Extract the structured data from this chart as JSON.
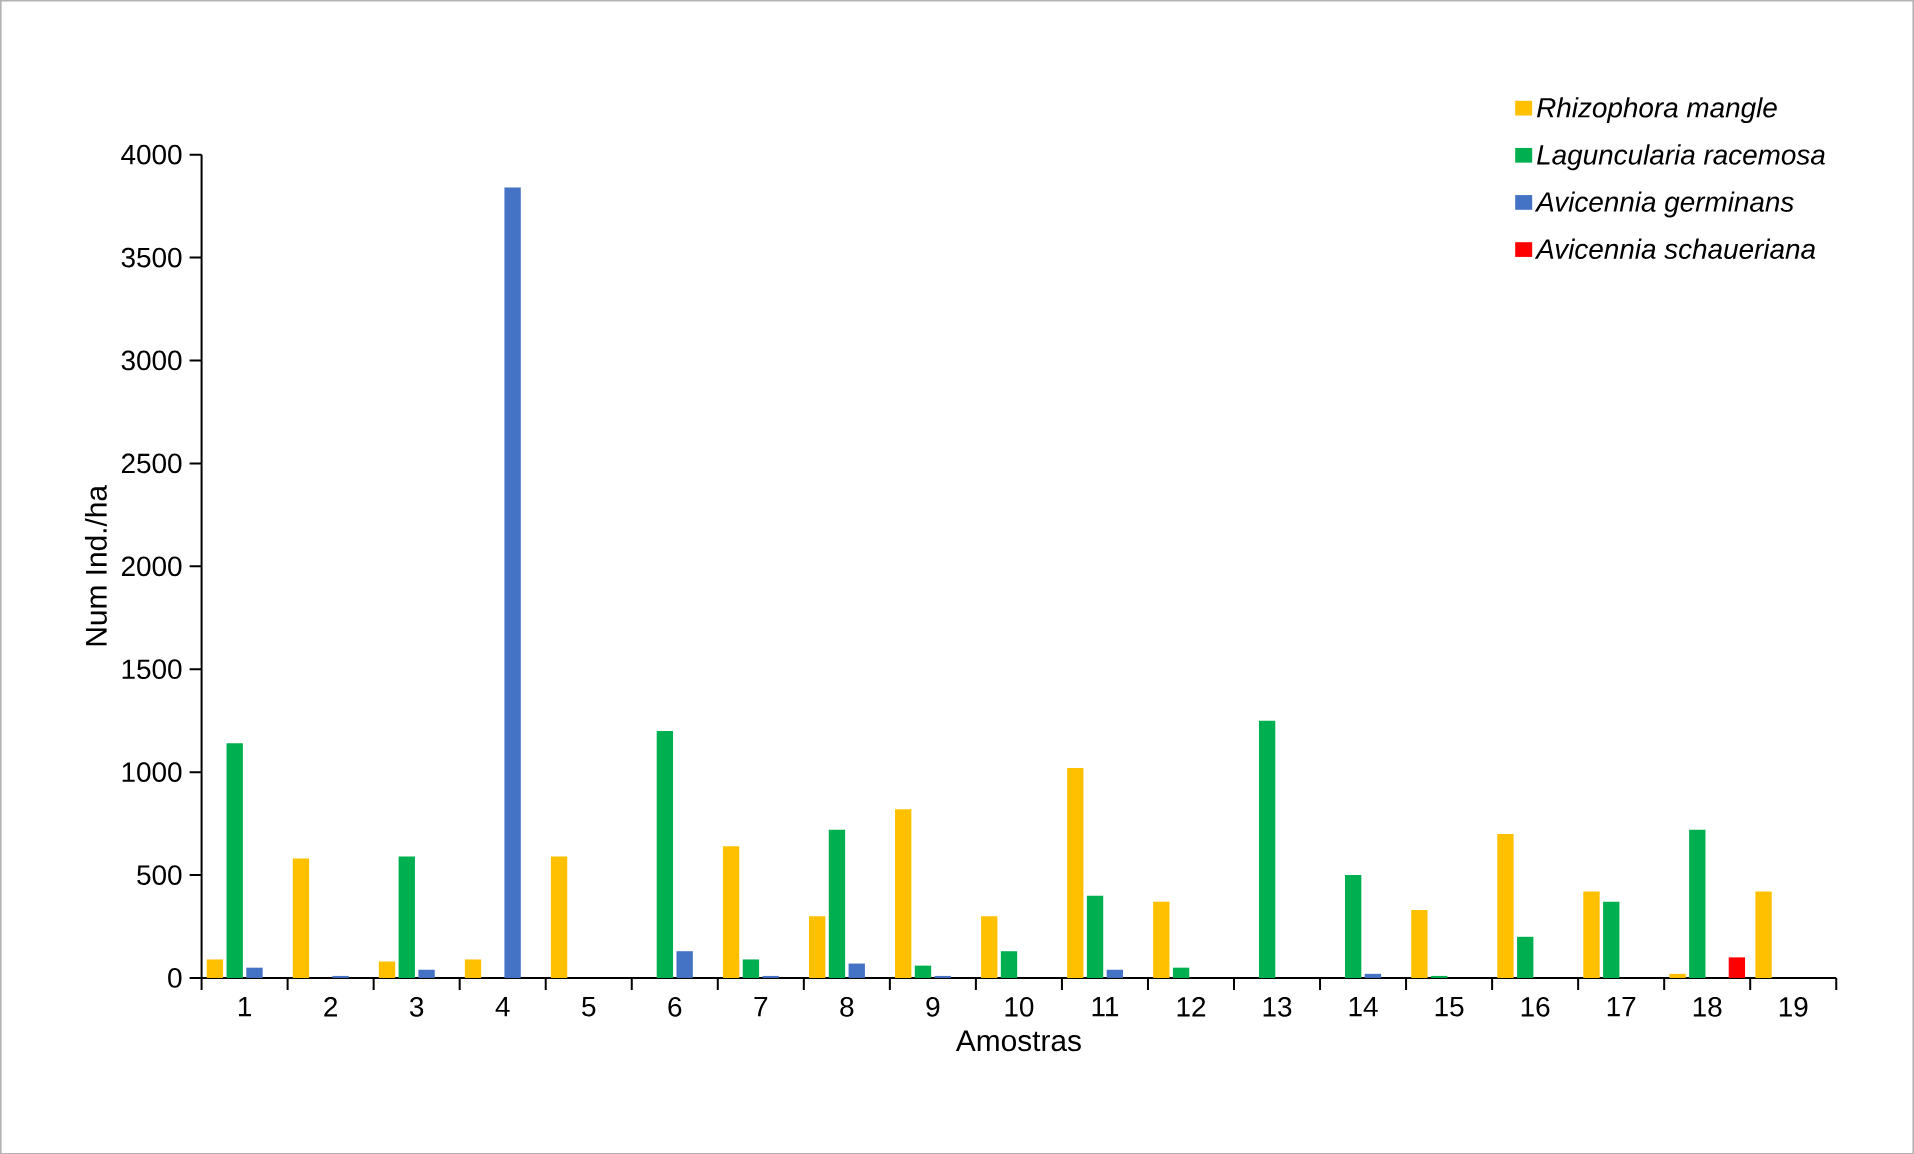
{
  "chart_data": {
    "type": "bar",
    "xlabel": "Amostras",
    "ylabel": "Num Ind./ha",
    "categories": [
      "1",
      "2",
      "3",
      "4",
      "5",
      "6",
      "7",
      "8",
      "9",
      "10",
      "11",
      "12",
      "13",
      "14",
      "15",
      "16",
      "17",
      "18",
      "19"
    ],
    "series": [
      {
        "name": "Rhizophora mangle",
        "color": "#ffc000",
        "values": [
          90,
          580,
          80,
          90,
          590,
          0,
          640,
          300,
          820,
          300,
          1020,
          370,
          0,
          0,
          330,
          700,
          420,
          20,
          420
        ]
      },
      {
        "name": "Laguncularia  racemosa",
        "color": "#00b050",
        "values": [
          1140,
          0,
          590,
          0,
          0,
          1200,
          90,
          720,
          60,
          130,
          400,
          50,
          1250,
          500,
          10,
          200,
          370,
          720,
          0
        ]
      },
      {
        "name": "Avicennia germinans",
        "color": "#4472c4",
        "values": [
          50,
          10,
          40,
          3840,
          0,
          130,
          10,
          70,
          10,
          0,
          40,
          0,
          0,
          20,
          0,
          0,
          0,
          0,
          0
        ]
      },
      {
        "name": "Avicennia schaueriana",
        "color": "#ff0000",
        "values": [
          0,
          0,
          0,
          0,
          0,
          0,
          0,
          0,
          0,
          0,
          0,
          0,
          0,
          0,
          0,
          0,
          0,
          100,
          0
        ]
      }
    ],
    "ylim": [
      0,
      4000
    ],
    "yticks": [
      0,
      500,
      1000,
      1500,
      2000,
      2500,
      3000,
      3500,
      4000
    ],
    "grid": false,
    "legend": "top right"
  }
}
